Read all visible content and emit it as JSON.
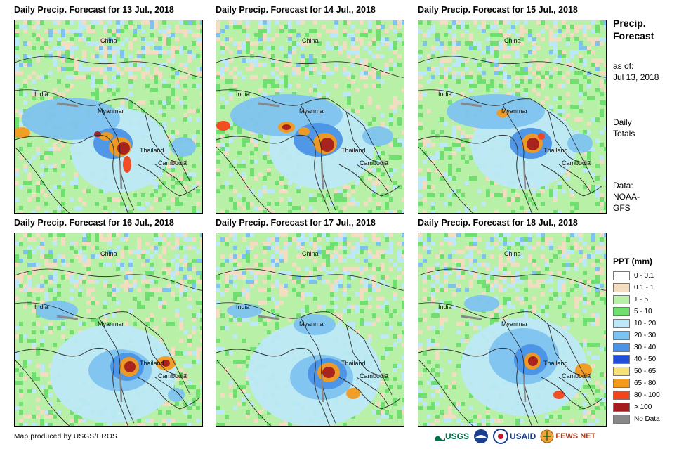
{
  "panels": [
    {
      "title": "Daily Precip. Forecast for 13 Jul., 2018"
    },
    {
      "title": "Daily Precip. Forecast for 14 Jul., 2018"
    },
    {
      "title": "Daily Precip. Forecast for 15 Jul., 2018"
    },
    {
      "title": "Daily Precip. Forecast for 16 Jul., 2018"
    },
    {
      "title": "Daily Precip. Forecast for 17 Jul., 2018"
    },
    {
      "title": "Daily Precip. Forecast for 18 Jul., 2018"
    }
  ],
  "map_labels": {
    "china": "China",
    "india": "India",
    "myanmar": "Myanmar",
    "thailand": "Thailand",
    "cambodia": "Cambodia"
  },
  "side_info": {
    "title_line1": "Precip.",
    "title_line2": "Forecast",
    "asof_line1": "as of:",
    "asof_line2": "Jul 13, 2018",
    "totals_line1": "Daily",
    "totals_line2": "Totals",
    "data_line1": "Data:",
    "data_line2": "NOAA-",
    "data_line3": "GFS"
  },
  "legend": {
    "title": "PPT (mm)",
    "items": [
      {
        "label": "0 - 0.1",
        "color": "#ffffff"
      },
      {
        "label": "0.1 - 1",
        "color": "#f2ddc0"
      },
      {
        "label": "1 - 5",
        "color": "#b9f0a8"
      },
      {
        "label": "5 - 10",
        "color": "#6fe06f"
      },
      {
        "label": "10 - 20",
        "color": "#bde8f7"
      },
      {
        "label": "20 - 30",
        "color": "#7ec3ef"
      },
      {
        "label": "30 - 40",
        "color": "#4a93e6"
      },
      {
        "label": "40 - 50",
        "color": "#1f4fd9"
      },
      {
        "label": "50 - 65",
        "color": "#f7e27a"
      },
      {
        "label": "65 - 80",
        "color": "#f39a1c"
      },
      {
        "label": "80 - 100",
        "color": "#f3441a"
      },
      {
        "label": "> 100",
        "color": "#a51d1d"
      },
      {
        "label": "No Data",
        "color": "#888888"
      }
    ]
  },
  "credit": "Map produced by USGS/EROS",
  "logos": {
    "usgs": "USGS",
    "usaid": "USAID",
    "fewsnet": "FEWS NET"
  }
}
